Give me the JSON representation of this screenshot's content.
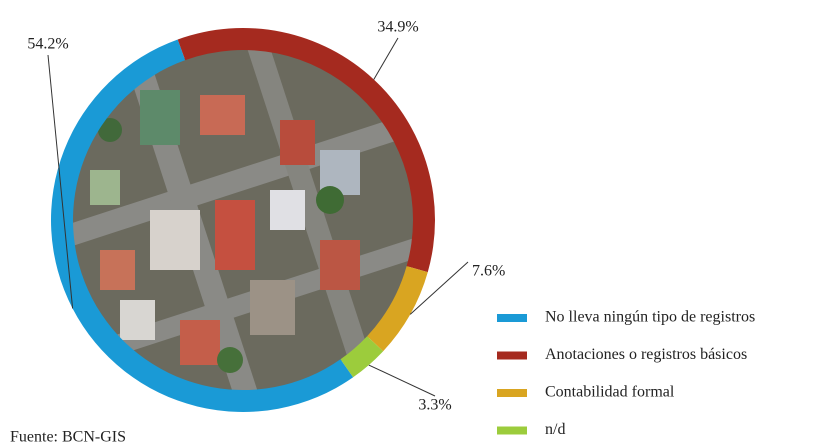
{
  "chart_data": {
    "type": "donut",
    "categories": [
      "No lleva ningún tipo de registros",
      "Anotaciones o registros básicos",
      "Contabilidad formal",
      "n/d"
    ],
    "values": [
      54.2,
      34.9,
      7.6,
      3.3
    ],
    "value_labels": [
      "54.2%",
      "34.9%",
      "7.6%",
      "3.3%"
    ],
    "colors": [
      "#1a9ad6",
      "#a52a1f",
      "#d9a521",
      "#9ccc3c"
    ],
    "source": "Fuente: BCN-GIS"
  }
}
